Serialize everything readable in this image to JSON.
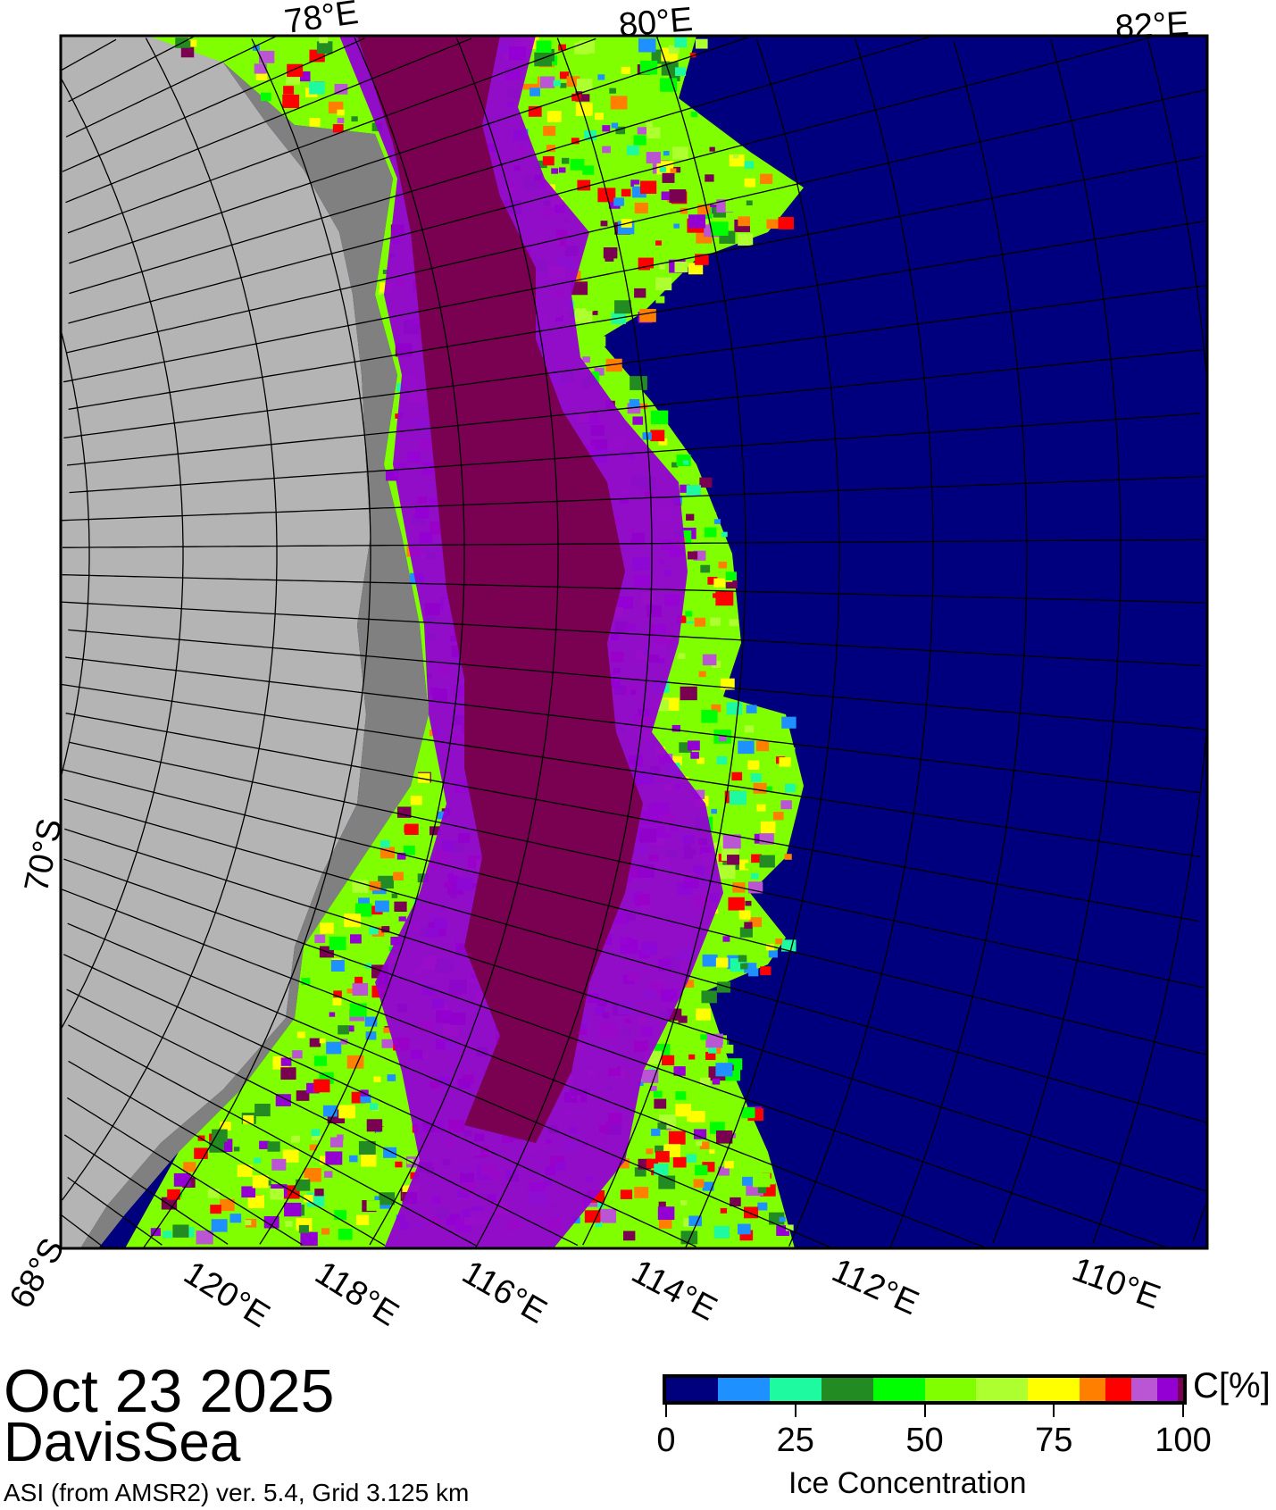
{
  "title": {
    "date": "Oct 23 2025",
    "region": "DavisSea",
    "product": "ASI (from AMSR2) ver. 5.4,  Grid 3.125 km"
  },
  "map": {
    "lon_labels_top": [
      "78°E",
      "80°E",
      "82°E"
    ],
    "lon_labels_bottom": [
      "120°E",
      "118°E",
      "116°E",
      "114°E",
      "112°E",
      "110°E"
    ],
    "lat_labels": [
      "70°S",
      "68°S"
    ],
    "colors": {
      "land": "#b4b4b4",
      "coast": "#808080",
      "open_water": "#00007f",
      "consolidated_ice": "#7a0052",
      "frame": "#000000"
    }
  },
  "colorbar": {
    "unit": "C[%]",
    "label": "Ice Concentration",
    "ticks": [
      "0",
      "25",
      "50",
      "75",
      "100"
    ],
    "range": [
      0,
      100
    ],
    "colors": [
      "#00007f",
      "#1e90ff",
      "#1efaa0",
      "#228b22",
      "#00ff00",
      "#7fff00",
      "#adff2f",
      "#ffff00",
      "#ff8000",
      "#ff0000",
      "#ba55d3",
      "#9400d3",
      "#7a0052"
    ],
    "bounds": [
      0,
      10,
      20,
      30,
      40,
      50,
      60,
      70,
      80,
      85,
      90,
      95,
      99,
      100
    ]
  }
}
